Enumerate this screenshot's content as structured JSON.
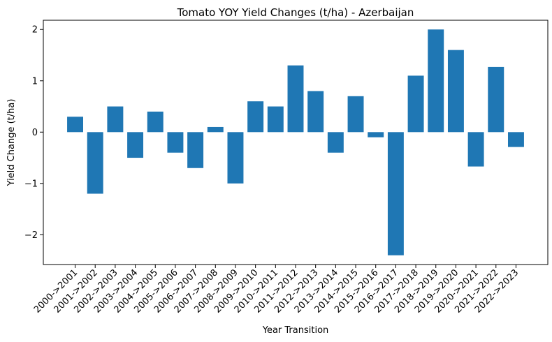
{
  "colors": {
    "bar": "#1f77b4",
    "axis": "#000000",
    "background": "#ffffff"
  },
  "chart_data": {
    "type": "bar",
    "title": "Tomato YOY Yield Changes (t/ha) - Azerbaijan",
    "xlabel": "Year Transition",
    "ylabel": "Yield Change (t/ha)",
    "ylim": [
      -2.58,
      2.18
    ],
    "yticks": [
      -2,
      -1,
      0,
      1,
      2
    ],
    "ytick_labels": [
      "−2",
      "−1",
      "0",
      "1",
      "2"
    ],
    "grid": false,
    "categories": [
      "2000->2001",
      "2001->2002",
      "2002->2003",
      "2003->2004",
      "2004->2005",
      "2005->2006",
      "2006->2007",
      "2007->2008",
      "2008->2009",
      "2009->2010",
      "2010->2011",
      "2011->2012",
      "2012->2013",
      "2013->2014",
      "2014->2015",
      "2015->2016",
      "2016->2017",
      "2017->2018",
      "2018->2019",
      "2019->2020",
      "2020->2021",
      "2021->2022",
      "2022->2023"
    ],
    "values": [
      0.3,
      -1.2,
      0.5,
      -0.5,
      0.4,
      -0.4,
      -0.7,
      0.1,
      -1.0,
      0.6,
      0.5,
      1.3,
      0.8,
      -0.4,
      0.7,
      -0.1,
      -2.4,
      1.1,
      2.0,
      1.6,
      -0.67,
      1.27,
      -0.29
    ]
  }
}
